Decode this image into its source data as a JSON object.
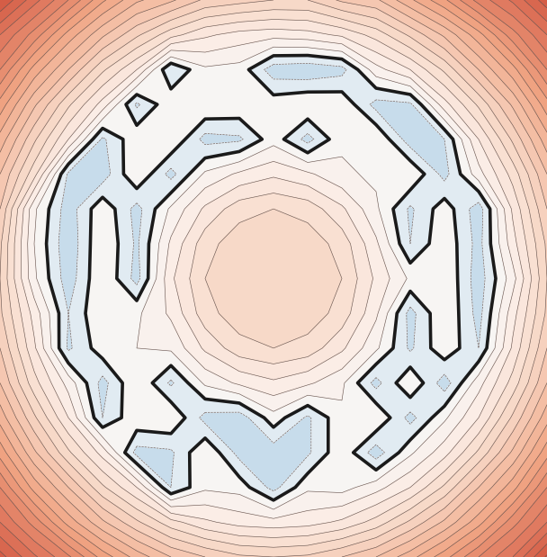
{
  "chart_data": {
    "type": "contour",
    "tick_labels": false,
    "levels": [
      -1.0,
      -0.5,
      0.0,
      0.5,
      1.0,
      1.5,
      2.0,
      2.5,
      3.0,
      3.5,
      4.0,
      4.5,
      5.0,
      5.5,
      6.0,
      6.5,
      7.0,
      7.5,
      8.0,
      8.5,
      9.0,
      9.5,
      10.0
    ],
    "threshold": 0.0,
    "z": [
      [
        9.5,
        8.2,
        7.0,
        5.6,
        4.6,
        4.1,
        3.4,
        3.2,
        3.0,
        3.0,
        3.6,
        3.9,
        4.9,
        5.9,
        7.2,
        8.1,
        9.3
      ],
      [
        8.0,
        6.8,
        5.3,
        4.1,
        3.1,
        2.2,
        1.6,
        1.3,
        1.2,
        1.3,
        1.6,
        2.2,
        3.1,
        4.1,
        5.3,
        6.8,
        8.0
      ],
      [
        7.0,
        5.3,
        4.0,
        2.6,
        1.5,
        -0.5,
        0.4,
        0.3,
        -0.8,
        -0.9,
        -0.7,
        0.8,
        1.5,
        2.6,
        4.0,
        5.3,
        7.0
      ],
      [
        5.8,
        4.1,
        2.6,
        1.3,
        -0.6,
        0.4,
        0.5,
        0.4,
        0.3,
        0.5,
        0.4,
        -0.7,
        -0.6,
        1.3,
        2.6,
        4.1,
        5.8
      ],
      [
        4.8,
        3.1,
        1.5,
        -0.6,
        0.4,
        0.5,
        -0.7,
        -0.6,
        0.3,
        -0.7,
        0.4,
        0.5,
        -0.8,
        -0.5,
        1.5,
        3.1,
        4.8
      ],
      [
        4.0,
        2.2,
        -0.6,
        -0.8,
        0.5,
        -0.7,
        0.6,
        1.1,
        1.4,
        1.1,
        0.6,
        0.4,
        0.5,
        -0.7,
        0.8,
        2.2,
        4.0
      ],
      [
        3.5,
        0.6,
        -0.8,
        0.4,
        -0.7,
        0.6,
        1.6,
        2.3,
        2.5,
        2.3,
        1.6,
        0.6,
        -0.6,
        0.3,
        -0.8,
        1.6,
        3.5
      ],
      [
        3.1,
        0.5,
        -0.9,
        0.5,
        -0.6,
        1.1,
        2.3,
        2.8,
        2.9,
        2.8,
        2.3,
        1.1,
        -0.5,
        0.4,
        -0.7,
        1.3,
        3.1
      ],
      [
        3.0,
        0.6,
        -0.8,
        0.5,
        -0.7,
        1.4,
        2.5,
        2.9,
        3.0,
        2.9,
        2.5,
        1.4,
        0.4,
        0.5,
        -0.8,
        0.8,
        3.0
      ],
      [
        3.1,
        1.3,
        -0.5,
        0.5,
        0.4,
        1.1,
        2.3,
        2.8,
        2.9,
        2.8,
        2.3,
        1.1,
        -0.7,
        0.5,
        -0.7,
        1.3,
        3.1
      ],
      [
        3.5,
        1.6,
        -0.6,
        0.3,
        0.5,
        0.6,
        1.6,
        2.3,
        2.5,
        2.3,
        1.6,
        0.6,
        -0.6,
        0.4,
        -0.5,
        1.6,
        3.5
      ],
      [
        4.0,
        2.2,
        0.8,
        -0.7,
        0.5,
        -0.6,
        0.6,
        1.1,
        1.4,
        1.1,
        0.6,
        -0.7,
        0.5,
        -0.8,
        0.8,
        2.2,
        4.0
      ],
      [
        4.8,
        3.1,
        1.5,
        -0.5,
        0.4,
        0.5,
        -0.7,
        -0.8,
        0.3,
        -0.6,
        0.4,
        0.5,
        -0.7,
        0.4,
        1.5,
        3.1,
        4.8
      ],
      [
        5.8,
        4.1,
        2.6,
        1.3,
        -0.7,
        -0.6,
        0.5,
        -0.7,
        -0.8,
        -0.6,
        0.4,
        -0.8,
        0.4,
        1.3,
        2.6,
        4.1,
        5.8
      ],
      [
        7.0,
        5.3,
        4.0,
        2.6,
        1.5,
        -0.5,
        0.4,
        0.3,
        -0.7,
        0.4,
        0.3,
        0.8,
        1.5,
        2.6,
        4.0,
        5.3,
        7.0
      ],
      [
        8.0,
        6.8,
        5.3,
        4.1,
        3.1,
        2.2,
        1.6,
        1.3,
        1.2,
        1.3,
        1.6,
        2.2,
        3.1,
        4.1,
        5.3,
        6.8,
        8.0
      ],
      [
        9.2,
        8.1,
        7.1,
        5.8,
        4.8,
        4.0,
        3.5,
        3.1,
        3.0,
        3.1,
        3.5,
        4.0,
        4.8,
        5.8,
        7.0,
        8.0,
        9.6
      ]
    ]
  }
}
